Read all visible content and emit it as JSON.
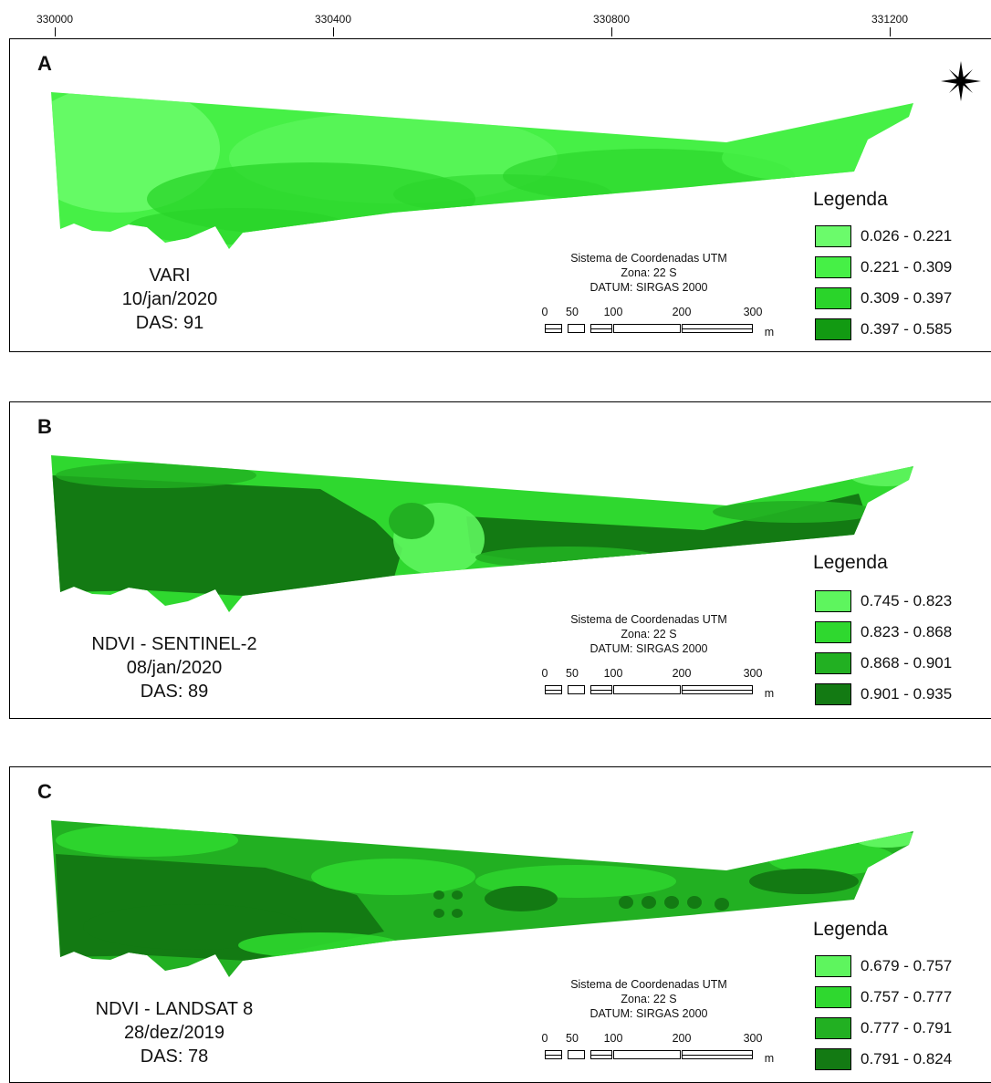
{
  "x_axis": {
    "ticks": [
      "330000",
      "330400",
      "330800",
      "331200"
    ]
  },
  "panels": [
    {
      "id": "A",
      "letter": "A",
      "info_lines": [
        "VARI",
        "10/jan/2020",
        "DAS: 91"
      ],
      "legend_title": "Legenda",
      "legend": [
        {
          "label": "0.026 - 0.221",
          "color": "#6bfb6b"
        },
        {
          "label": "0.221 - 0.309",
          "color": "#46f046"
        },
        {
          "label": "0.309 - 0.397",
          "color": "#2ad42a"
        },
        {
          "label": "0.397 - 0.585",
          "color": "#129a12"
        }
      ],
      "style": "speckle"
    },
    {
      "id": "B",
      "letter": "B",
      "info_lines": [
        "NDVI - SENTINEL-2",
        "08/jan/2020",
        "DAS: 89"
      ],
      "legend_title": "Legenda",
      "legend": [
        {
          "label": "0.745 - 0.823",
          "color": "#5ef55e"
        },
        {
          "label": "0.823 - 0.868",
          "color": "#2fd82f"
        },
        {
          "label": "0.868 - 0.901",
          "color": "#22b022"
        },
        {
          "label": "0.901 - 0.935",
          "color": "#137a13"
        }
      ],
      "style": "zones"
    },
    {
      "id": "C",
      "letter": "C",
      "info_lines": [
        "NDVI - LANDSAT 8",
        "28/dez/2019",
        "DAS: 78"
      ],
      "legend_title": "Legenda",
      "legend": [
        {
          "label": "0.679 - 0.757",
          "color": "#5ef55e"
        },
        {
          "label": "0.757 - 0.777",
          "color": "#2fd82f"
        },
        {
          "label": "0.777 - 0.791",
          "color": "#22b022"
        },
        {
          "label": "0.791 - 0.824",
          "color": "#137a13"
        }
      ],
      "style": "blobs"
    }
  ],
  "crs": {
    "line1": "Sistema de Coordenadas UTM",
    "line2": "Zona: 22 S",
    "line3": "DATUM: SIRGAS 2000"
  },
  "scale_bar": {
    "labels": [
      "0",
      "50",
      "100",
      "200",
      "300"
    ],
    "unit": "m"
  },
  "north_arrow_icon": "compass-rose-icon"
}
